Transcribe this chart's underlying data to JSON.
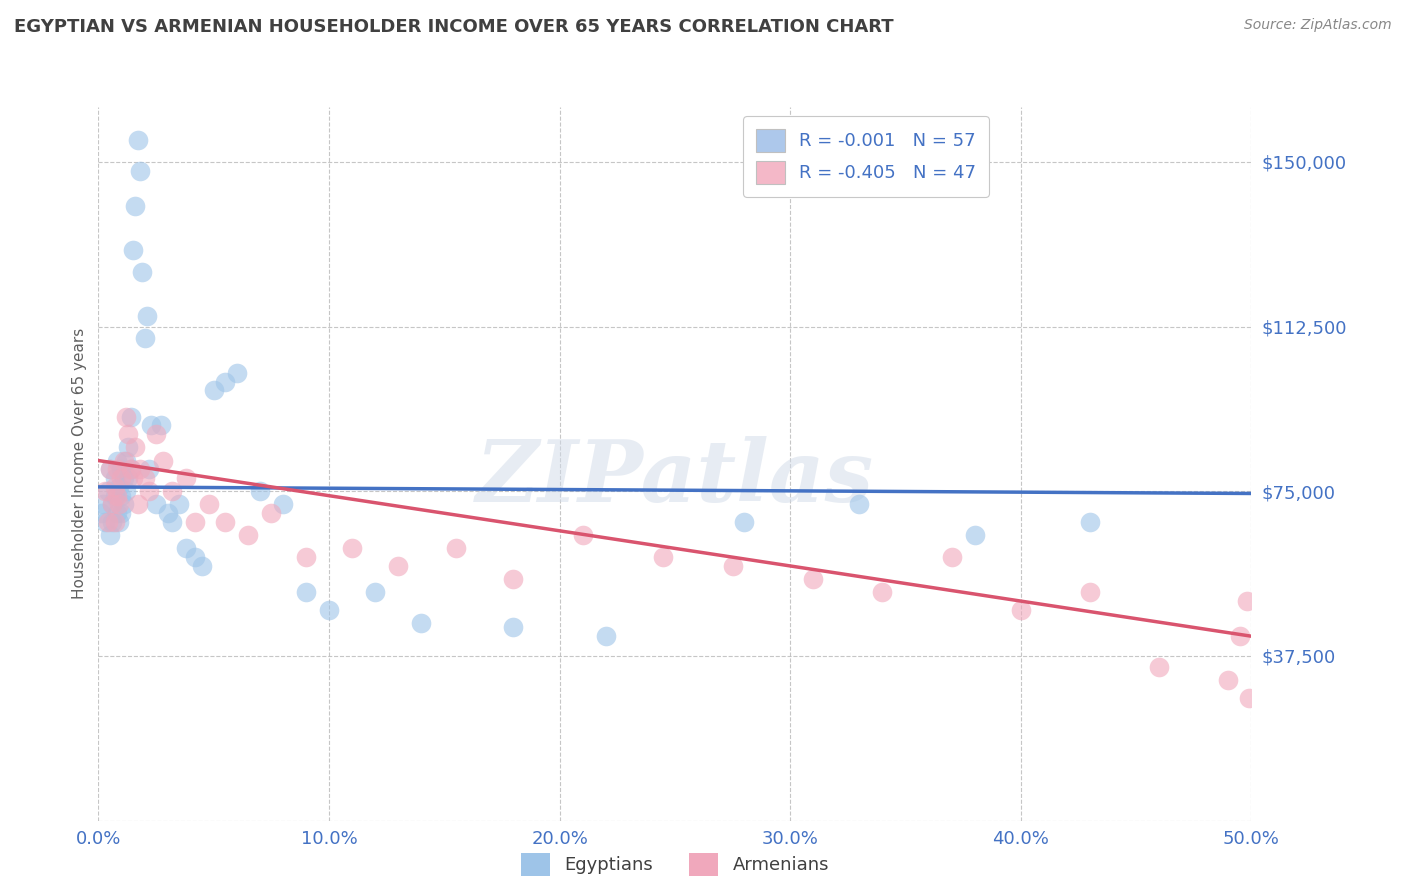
{
  "title": "EGYPTIAN VS ARMENIAN HOUSEHOLDER INCOME OVER 65 YEARS CORRELATION CHART",
  "source": "Source: ZipAtlas.com",
  "ylabel": "Householder Income Over 65 years",
  "xlim": [
    0.0,
    0.5
  ],
  "ylim": [
    0,
    162500
  ],
  "yticks": [
    0,
    37500,
    75000,
    112500,
    150000
  ],
  "xticks": [
    0.0,
    0.1,
    0.2,
    0.3,
    0.4,
    0.5
  ],
  "legend_entries": [
    {
      "label_r": "R = ",
      "label_rval": "-0.001",
      "label_n": "   N = ",
      "label_nval": "57",
      "color": "#adc8eb"
    },
    {
      "label_r": "R = ",
      "label_rval": "-0.405",
      "label_n": "   N = ",
      "label_nval": "47",
      "color": "#f4b8c8"
    }
  ],
  "legend_bottom_labels": [
    "Egyptians",
    "Armenians"
  ],
  "blue_line_color": "#4472c4",
  "pink_line_color": "#d9546e",
  "blue_dot_color": "#9ec4e8",
  "pink_dot_color": "#f0a8bc",
  "watermark": "ZIPatlas",
  "title_color": "#404040",
  "axis_tick_color": "#4472c4",
  "grid_color": "#b8b8b8",
  "egyptians_x": [
    0.001,
    0.002,
    0.003,
    0.004,
    0.005,
    0.005,
    0.006,
    0.006,
    0.007,
    0.007,
    0.008,
    0.008,
    0.009,
    0.009,
    0.01,
    0.01,
    0.01,
    0.011,
    0.011,
    0.012,
    0.012,
    0.013,
    0.013,
    0.014,
    0.014,
    0.015,
    0.016,
    0.017,
    0.018,
    0.019,
    0.02,
    0.021,
    0.022,
    0.023,
    0.025,
    0.027,
    0.03,
    0.032,
    0.035,
    0.038,
    0.042,
    0.045,
    0.05,
    0.055,
    0.06,
    0.07,
    0.08,
    0.09,
    0.1,
    0.12,
    0.14,
    0.18,
    0.22,
    0.28,
    0.33,
    0.38,
    0.43
  ],
  "egyptians_y": [
    70000,
    72000,
    68000,
    75000,
    80000,
    65000,
    72000,
    68000,
    78000,
    74000,
    82000,
    70000,
    76000,
    68000,
    80000,
    74000,
    70000,
    78000,
    72000,
    82000,
    75000,
    85000,
    78000,
    80000,
    92000,
    130000,
    140000,
    155000,
    148000,
    125000,
    110000,
    115000,
    80000,
    90000,
    72000,
    90000,
    70000,
    68000,
    72000,
    62000,
    60000,
    58000,
    98000,
    100000,
    102000,
    75000,
    72000,
    52000,
    48000,
    52000,
    45000,
    44000,
    42000,
    68000,
    72000,
    65000,
    68000
  ],
  "armenians_x": [
    0.003,
    0.004,
    0.005,
    0.006,
    0.007,
    0.007,
    0.008,
    0.008,
    0.009,
    0.01,
    0.011,
    0.012,
    0.013,
    0.014,
    0.015,
    0.016,
    0.017,
    0.018,
    0.02,
    0.022,
    0.025,
    0.028,
    0.032,
    0.038,
    0.042,
    0.048,
    0.055,
    0.065,
    0.075,
    0.09,
    0.11,
    0.13,
    0.155,
    0.18,
    0.21,
    0.245,
    0.275,
    0.31,
    0.34,
    0.37,
    0.4,
    0.43,
    0.46,
    0.49,
    0.495,
    0.498,
    0.499
  ],
  "armenians_y": [
    75000,
    68000,
    80000,
    72000,
    76000,
    68000,
    80000,
    74000,
    72000,
    78000,
    82000,
    92000,
    88000,
    80000,
    78000,
    85000,
    72000,
    80000,
    78000,
    75000,
    88000,
    82000,
    75000,
    78000,
    68000,
    72000,
    68000,
    65000,
    70000,
    60000,
    62000,
    58000,
    62000,
    55000,
    65000,
    60000,
    58000,
    55000,
    52000,
    60000,
    48000,
    52000,
    35000,
    32000,
    42000,
    50000,
    28000
  ],
  "eg_trend_x": [
    0.0,
    0.5
  ],
  "eg_trend_y": [
    76000,
    74500
  ],
  "ar_trend_x": [
    0.0,
    0.5
  ],
  "ar_trend_y": [
    82000,
    42000
  ]
}
